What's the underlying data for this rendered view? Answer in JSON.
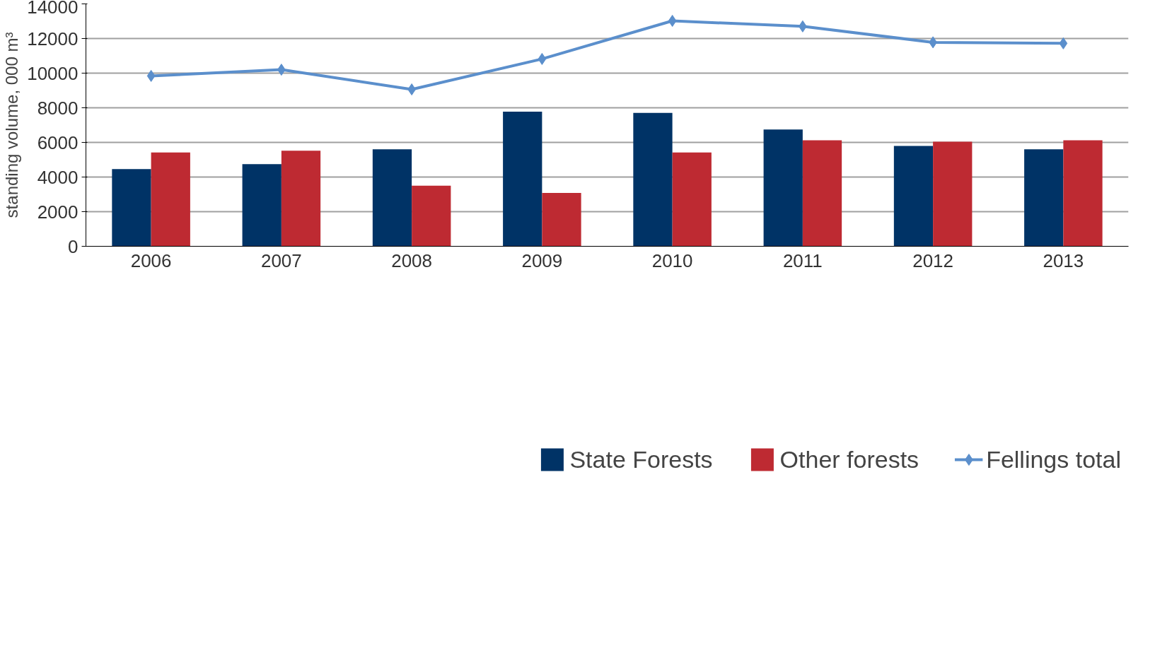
{
  "chart_data": {
    "type": "bar",
    "ylabel": "standing volume, 000 m³",
    "categories": [
      "2006",
      "2007",
      "2008",
      "2009",
      "2010",
      "2011",
      "2012",
      "2013"
    ],
    "series": [
      {
        "name": "State Forests",
        "color": "#003366",
        "values": [
          4460,
          4740,
          5600,
          7780,
          7700,
          6740,
          5800,
          5600
        ]
      },
      {
        "name": "Other forests",
        "color": "#be2a32",
        "values": [
          5420,
          5520,
          3500,
          3080,
          5420,
          6120,
          6040,
          6120
        ]
      },
      {
        "name": "Fellings total",
        "type": "line",
        "color": "#5b8fcc",
        "marker": "diamond",
        "values": [
          9840,
          10200,
          9060,
          10820,
          13020,
          12700,
          11780,
          11720
        ]
      }
    ],
    "ylim": [
      0,
      14000
    ],
    "yticks": [
      0,
      2000,
      4000,
      6000,
      8000,
      10000,
      12000,
      14000
    ],
    "grid": "y",
    "legend": "bottom"
  }
}
